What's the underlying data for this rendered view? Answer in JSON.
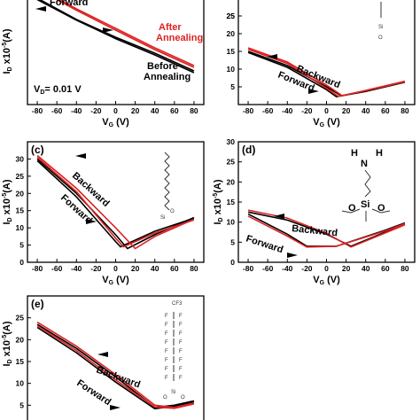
{
  "colors": {
    "before": "#000000",
    "after": "#dd2222",
    "text": "#000000",
    "ann_red": "#dd2222"
  },
  "chart_data": [
    {
      "panel": "(a)",
      "type": "line",
      "xlabel_main": "V",
      "xlabel_sub": "G",
      "xlabel_unit": " (V)",
      "ylabel_main": "I",
      "ylabel_sub": "D",
      "ylabel_mid": " x10",
      "ylabel_sup": "-5",
      "ylabel_unit": "(A)",
      "xlim": [
        -90,
        90
      ],
      "ylim": [
        0,
        30
      ],
      "xticks": [
        -80,
        -60,
        -40,
        -20,
        0,
        20,
        40,
        60,
        80
      ],
      "yticks": [],
      "yticks_right": [
        25
      ],
      "vd_text": "V",
      "vd_sub": "D",
      "vd_value": "= 0.01 V",
      "annotations": [
        {
          "text": "Forward",
          "color": "#000000"
        },
        {
          "text": "After",
          "color": "#dd2222"
        },
        {
          "text": "Annealing",
          "color": "#dd2222"
        },
        {
          "text": "Before",
          "color": "#000000"
        },
        {
          "text": "Annealing",
          "color": "#000000"
        }
      ],
      "series": [
        {
          "x": [
            -80,
            -40,
            0,
            40,
            80
          ],
          "y": [
            30,
            24,
            19,
            14.5,
            9.5
          ]
        },
        {
          "x": [
            -80,
            -40,
            0,
            40,
            80
          ],
          "y": [
            29.6,
            23.8,
            18.6,
            14,
            9
          ]
        },
        {
          "x": [
            -80,
            -40,
            0,
            40,
            80
          ],
          "y": [
            33,
            27,
            21.5,
            16,
            11
          ]
        },
        {
          "x": [
            -80,
            -40,
            0,
            40,
            80
          ],
          "y": [
            32.6,
            26.6,
            21,
            15.5,
            10.5
          ]
        }
      ]
    },
    {
      "panel": "(b)",
      "type": "line",
      "xlabel_main": "V",
      "xlabel_sub": "G",
      "xlabel_unit": " (V)",
      "xlim": [
        -90,
        90
      ],
      "ylim": [
        0,
        30
      ],
      "xticks": [
        -80,
        -60,
        -40,
        -20,
        0,
        20,
        40,
        60,
        80
      ],
      "yticks": [
        5,
        10,
        15,
        20,
        25
      ],
      "annotations": [
        {
          "text": "Backward",
          "color": "#000000"
        },
        {
          "text": "Forward",
          "color": "#000000"
        }
      ],
      "series": [
        {
          "x": [
            -80,
            -40,
            0,
            15,
            40,
            80
          ],
          "y": [
            15,
            11,
            5,
            2.5,
            3.8,
            6.5
          ]
        },
        {
          "x": [
            -80,
            -40,
            0,
            10,
            40,
            80
          ],
          "y": [
            14.7,
            10.5,
            4.2,
            2.2,
            3.7,
            6.3
          ]
        },
        {
          "x": [
            -80,
            -40,
            0,
            16,
            40,
            80
          ],
          "y": [
            16,
            12,
            5.5,
            2.5,
            4,
            6.6
          ]
        },
        {
          "x": [
            -80,
            -40,
            0,
            12,
            40,
            80
          ],
          "y": [
            15.6,
            11.6,
            4.6,
            2.3,
            3.9,
            6.4
          ]
        }
      ]
    },
    {
      "panel": "(c)",
      "type": "line",
      "xlabel_main": "V",
      "xlabel_sub": "G",
      "xlabel_unit": " (V)",
      "ylabel_main": "I",
      "ylabel_sub": "D",
      "ylabel_mid": " x10",
      "ylabel_sup": "-5",
      "ylabel_unit": "(A)",
      "xlim": [
        -90,
        90
      ],
      "ylim": [
        0,
        35
      ],
      "xticks": [
        -80,
        -60,
        -40,
        -20,
        0,
        20,
        40,
        60,
        80
      ],
      "yticks": [
        0,
        5,
        10,
        15,
        20,
        25,
        30
      ],
      "annotations": [
        {
          "text": "Backward",
          "color": "#000000"
        },
        {
          "text": "Forward",
          "color": "#000000"
        }
      ],
      "series": [
        {
          "x": [
            -80,
            -40,
            0,
            12,
            40,
            80
          ],
          "y": [
            30,
            20,
            8,
            4,
            8,
            13
          ]
        },
        {
          "x": [
            -80,
            -40,
            0,
            5,
            40,
            80
          ],
          "y": [
            29.5,
            19,
            6,
            4.5,
            9,
            12.8
          ]
        },
        {
          "x": [
            -80,
            -40,
            0,
            20,
            40,
            80
          ],
          "y": [
            31,
            21.5,
            10,
            4,
            7.5,
            12.5
          ]
        },
        {
          "x": [
            -80,
            -40,
            0,
            8,
            40,
            80
          ],
          "y": [
            30.5,
            20.5,
            7,
            4.5,
            8.5,
            12.3
          ]
        }
      ]
    },
    {
      "panel": "(d)",
      "type": "line",
      "xlabel_main": "V",
      "xlabel_sub": "G",
      "xlabel_unit": " (V)",
      "ylabel_main": "I",
      "ylabel_sub": "D",
      "ylabel_mid": " x10",
      "ylabel_sup": "-5",
      "ylabel_unit": "(A)",
      "xlim": [
        -90,
        90
      ],
      "ylim": [
        0,
        30
      ],
      "xticks": [
        -80,
        -60,
        -40,
        -20,
        0,
        20,
        40,
        60,
        80
      ],
      "yticks": [
        0,
        5,
        10,
        15,
        20,
        25,
        30
      ],
      "annotations": [
        {
          "text": "Backward",
          "color": "#000000"
        },
        {
          "text": "Forward",
          "color": "#000000"
        }
      ],
      "series": [
        {
          "x": [
            -80,
            -40,
            0,
            25,
            60,
            80
          ],
          "y": [
            12.5,
            10.5,
            7,
            4,
            7.5,
            9.5
          ]
        },
        {
          "x": [
            -80,
            -40,
            -20,
            10,
            60,
            80
          ],
          "y": [
            12,
            7,
            4,
            4,
            8,
            9.8
          ]
        },
        {
          "x": [
            -80,
            -40,
            0,
            25,
            60,
            80
          ],
          "y": [
            13,
            11,
            7.2,
            3.8,
            7.3,
            9.3
          ]
        },
        {
          "x": [
            -80,
            -40,
            -20,
            10,
            60,
            80
          ],
          "y": [
            11.5,
            6.5,
            3.8,
            4,
            7.8,
            9.6
          ]
        }
      ]
    },
    {
      "panel": "(e)",
      "type": "line",
      "ylabel_main": "I",
      "ylabel_sub": "D",
      "ylabel_mid": " x10",
      "ylabel_sup": "-5",
      "ylabel_unit": "(A)",
      "xlim": [
        -90,
        90
      ],
      "ylim": [
        0,
        30
      ],
      "xticks": [],
      "yticks": [
        5,
        10,
        15,
        20,
        25
      ],
      "annotations": [
        {
          "text": "Backward",
          "color": "#000000"
        },
        {
          "text": "Forward",
          "color": "#000000"
        }
      ],
      "series": [
        {
          "x": [
            -80,
            -40,
            0,
            40,
            60,
            80
          ],
          "y": [
            23.5,
            18,
            11.5,
            4.5,
            5,
            6
          ]
        },
        {
          "x": [
            -80,
            -40,
            0,
            40,
            60,
            80
          ],
          "y": [
            22.8,
            17,
            10.3,
            4.2,
            4.8,
            5.8
          ]
        },
        {
          "x": [
            -80,
            -40,
            0,
            40,
            60,
            80
          ],
          "y": [
            24,
            18.5,
            12,
            5,
            4.5,
            5.5
          ]
        },
        {
          "x": [
            -80,
            -40,
            0,
            40,
            60,
            80
          ],
          "y": [
            23.2,
            17.5,
            10.8,
            4.6,
            4.3,
            5.3
          ]
        }
      ]
    }
  ],
  "molecule_labels": {
    "si": "Si",
    "o": "O",
    "h": "H",
    "n": "N",
    "f": "F",
    "cf3": "CF3"
  }
}
